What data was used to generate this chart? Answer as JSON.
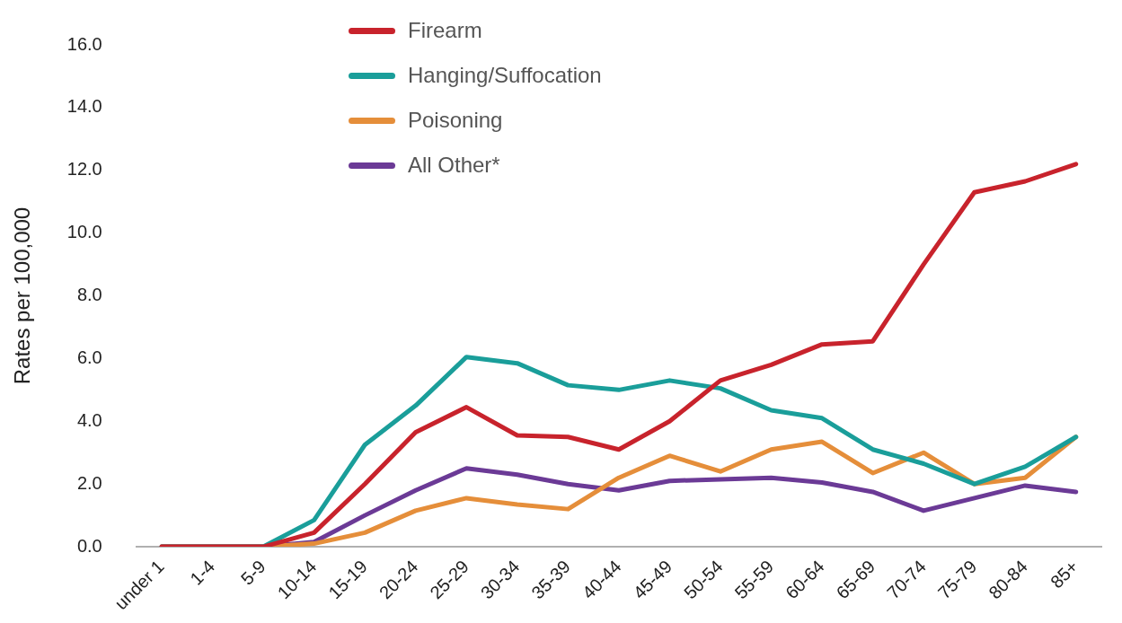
{
  "chart_data": {
    "type": "line",
    "ylabel": "Rates per 100,000",
    "categories": [
      "under 1",
      "1-4",
      "5-9",
      "10-14",
      "15-19",
      "20-24",
      "25-29",
      "30-34",
      "35-39",
      "40-44",
      "45-49",
      "50-54",
      "55-59",
      "60-64",
      "65-69",
      "70-74",
      "75-79",
      "80-84",
      "85+"
    ],
    "series": [
      {
        "name": "Firearm",
        "color": "#c8232c",
        "values": [
          0,
          0,
          0,
          0.45,
          2.0,
          3.65,
          4.45,
          3.55,
          3.5,
          3.1,
          4.0,
          5.3,
          5.8,
          6.45,
          6.55,
          9.0,
          11.3,
          11.65,
          12.2
        ]
      },
      {
        "name": "Hanging/Suffocation",
        "color": "#1a9e9a",
        "values": [
          0,
          0,
          0,
          0.85,
          3.25,
          4.5,
          6.05,
          5.85,
          5.15,
          5.0,
          5.3,
          5.05,
          4.35,
          4.1,
          3.1,
          2.65,
          2.0,
          2.55,
          3.5
        ]
      },
      {
        "name": "Poisoning",
        "color": "#e58e3a",
        "values": [
          0,
          0,
          0,
          0.1,
          0.45,
          1.15,
          1.55,
          1.35,
          1.2,
          2.2,
          2.9,
          2.4,
          3.1,
          3.35,
          2.35,
          3.0,
          2.0,
          2.2,
          3.5
        ]
      },
      {
        "name": "All Other*",
        "color": "#6b3a96",
        "values": [
          0,
          0,
          0,
          0.15,
          1.0,
          1.8,
          2.5,
          2.3,
          2.0,
          1.8,
          2.1,
          2.15,
          2.2,
          2.05,
          1.75,
          1.15,
          1.55,
          1.95,
          1.75
        ]
      }
    ],
    "ylim": [
      0,
      16
    ],
    "yticks": [
      {
        "value": 0,
        "label": "0.0"
      },
      {
        "value": 2,
        "label": "2.0"
      },
      {
        "value": 4,
        "label": "4.0"
      },
      {
        "value": 6,
        "label": "6.0"
      },
      {
        "value": 8,
        "label": "8.0"
      },
      {
        "value": 10,
        "label": "10.0"
      },
      {
        "value": 12,
        "label": "12.0"
      },
      {
        "value": 14,
        "label": "14.0"
      },
      {
        "value": 16,
        "label": "16.0"
      }
    ],
    "grid": false,
    "legend": "top"
  }
}
